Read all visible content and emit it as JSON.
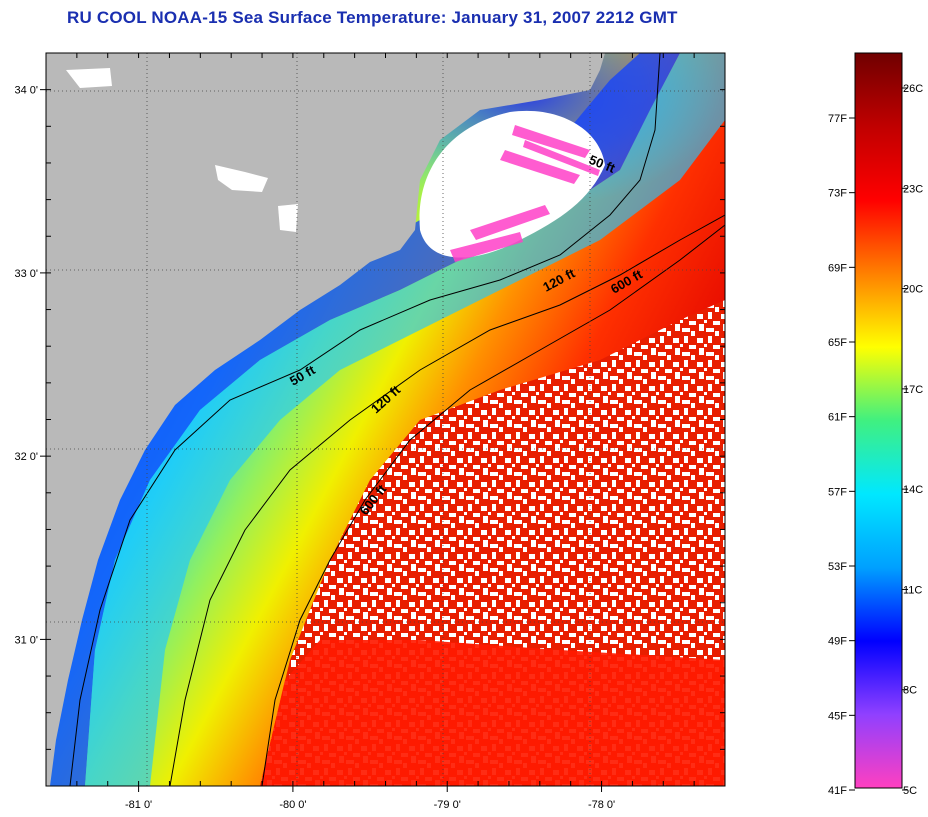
{
  "title": "RU COOL  NOAA-15  Sea Surface Temperature:  January 31, 2007 2212 GMT",
  "map": {
    "lon_range": [
      -81.6,
      -77.2
    ],
    "lat_range": [
      30.2,
      34.2
    ],
    "lon_ticks": [
      {
        "value": -81,
        "label": "-81 0'"
      },
      {
        "value": -80,
        "label": "-80 0'"
      },
      {
        "value": -79,
        "label": "-79 0'"
      },
      {
        "value": -78,
        "label": "-78 0'"
      }
    ],
    "lat_ticks": [
      {
        "value": 34,
        "label": "34 0'"
      },
      {
        "value": 33,
        "label": "33 0'"
      },
      {
        "value": 32,
        "label": "32 0'"
      },
      {
        "value": 31,
        "label": "31 0'"
      }
    ],
    "depth_labels": [
      {
        "text": "50 ft"
      },
      {
        "text": "120 ft"
      },
      {
        "text": "600 ft"
      },
      {
        "text": "50 ft"
      },
      {
        "text": "120 ft"
      },
      {
        "text": "600 ft"
      }
    ],
    "colors": {
      "land": "#b9b9b9",
      "cloud": "#ffffff",
      "frame": "#000000"
    }
  },
  "colorbar": {
    "fahrenheit_labels": [
      "77F",
      "73F",
      "69F",
      "65F",
      "61F",
      "57F",
      "53F",
      "49F",
      "45F",
      "41F"
    ],
    "celsius_labels": [
      "26C",
      "23C",
      "20C",
      "17C",
      "14C",
      "11C",
      "8C",
      "5C"
    ],
    "color_stops": [
      "#ff40c0",
      "#9040ff",
      "#0000ff",
      "#00a0ff",
      "#00e8ff",
      "#40f080",
      "#ffff00",
      "#ff8000",
      "#ff0000",
      "#c00000",
      "#700000"
    ]
  }
}
